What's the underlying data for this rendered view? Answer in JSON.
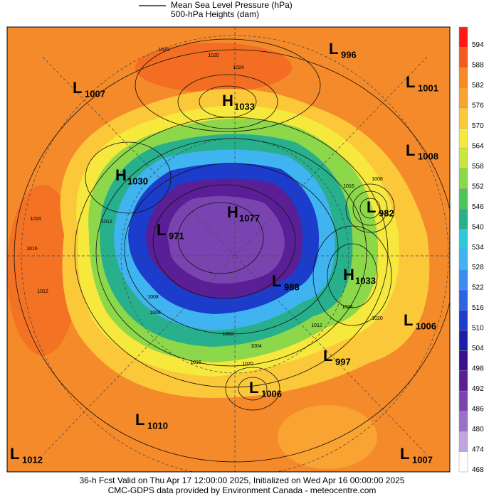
{
  "legend": {
    "items": [
      "Mean Sea Level Pressure (hPa)",
      "500-hPa Heights (dam)"
    ]
  },
  "centers": [
    {
      "kind": "L",
      "value": 996
    },
    {
      "kind": "L",
      "value": 1007
    },
    {
      "kind": "H",
      "value": 1033
    },
    {
      "kind": "L",
      "value": 1001
    },
    {
      "kind": "L",
      "value": 1008
    },
    {
      "kind": "H",
      "value": 1030
    },
    {
      "kind": "L",
      "value": 982
    },
    {
      "kind": "H",
      "value": 1077
    },
    {
      "kind": "L",
      "value": 971
    },
    {
      "kind": "L",
      "value": 988
    },
    {
      "kind": "H",
      "value": 1033
    },
    {
      "kind": "L",
      "value": 1006
    },
    {
      "kind": "L",
      "value": 997
    },
    {
      "kind": "L",
      "value": 1006
    },
    {
      "kind": "L",
      "value": 1010
    },
    {
      "kind": "L",
      "value": 1012
    },
    {
      "kind": "L",
      "value": 1007
    }
  ],
  "isobar_labels": [
    1016,
    1012,
    1020,
    1024,
    1008,
    1012,
    1016,
    1020,
    1008,
    1004,
    1000,
    1012,
    1016,
    1020,
    1024,
    1008,
    1016,
    1020
  ],
  "colorbar": {
    "ticks": [
      594,
      588,
      582,
      576,
      570,
      564,
      558,
      552,
      546,
      540,
      534,
      528,
      522,
      516,
      510,
      504,
      498,
      492,
      486,
      480,
      474,
      468
    ],
    "colors": [
      "#ff1a1a",
      "#f25a1e",
      "#f58a2a",
      "#f9a332",
      "#fbc83a",
      "#f6e83c",
      "#c8e63c",
      "#8cd84a",
      "#4cc45a",
      "#28b08c",
      "#30c8d8",
      "#40b4f0",
      "#3c8cf0",
      "#2c64e6",
      "#1c3ccc",
      "#1a1ea8",
      "#3a108c",
      "#5a1e96",
      "#7a44b0",
      "#9a70c8",
      "#c0a6dc",
      "#ffffff"
    ]
  },
  "footer": {
    "line1": "36-h Fcst Valid on Thu Apr 17 12:00:00 2025, Initialized on Wed Apr 16 00:00:00 2025",
    "line2": "CMC-GDPS data provided by Environment Canada - meteocentre.com"
  }
}
